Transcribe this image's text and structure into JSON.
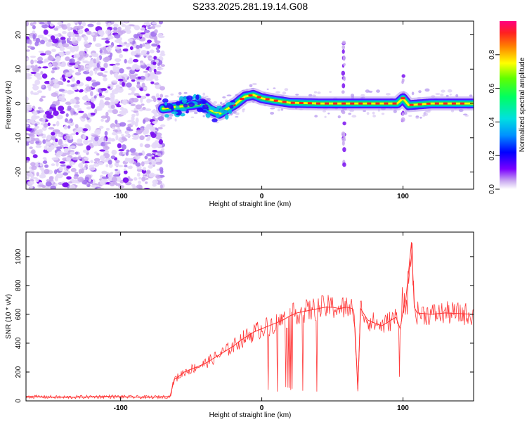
{
  "figure_title": "S233.2025.281.19.14.G08",
  "chart_data": [
    {
      "type": "heatmap",
      "title": "S233.2025.281.19.14.G08",
      "xlabel": "Height of straight line (km)",
      "ylabel": "Frequency (Hz)",
      "xlim": [
        -167,
        150
      ],
      "ylim": [
        -25,
        24
      ],
      "x_ticks": [
        -100,
        0,
        100
      ],
      "y_ticks": [
        20,
        10,
        0,
        -10,
        -20
      ],
      "colorbar": {
        "label": "Normalized spectral amplitude",
        "range": [
          0,
          1
        ],
        "ticks": [
          0.0,
          0.2,
          0.4,
          0.6,
          0.8
        ],
        "colors": [
          "#ffffff",
          "#c8a8f0",
          "#7a00ff",
          "#0000ff",
          "#00c8ff",
          "#00ff80",
          "#40ff00",
          "#ffff00",
          "#ff8000",
          "#ff0040",
          "#ff0080"
        ]
      },
      "noise_region_x": [
        -167,
        -70
      ],
      "dominant_frequency_track": {
        "x": [
          -70,
          -60,
          -50,
          -42,
          -36,
          -30,
          -24,
          -18,
          -12,
          -6,
          0,
          10,
          20,
          40,
          60,
          80,
          96,
          100,
          104,
          120,
          150
        ],
        "y": [
          -1.5,
          -1.0,
          -0.5,
          0.0,
          -2.0,
          -3.0,
          -1.5,
          0.0,
          2.0,
          2.5,
          1.5,
          0.8,
          0.2,
          0.0,
          0.0,
          0.0,
          0.0,
          1.5,
          -0.5,
          0.0,
          0.0
        ]
      },
      "vertical_streaks_x": [
        58,
        100
      ]
    },
    {
      "type": "line",
      "xlabel": "Height of straight line (km)",
      "ylabel": "SNR (10 * v/v)",
      "xlim": [
        -167,
        150
      ],
      "ylim": [
        0,
        1170
      ],
      "x_ticks": [
        -100,
        0,
        100
      ],
      "y_ticks": [
        0,
        200,
        400,
        600,
        800,
        1000
      ],
      "series": [
        {
          "name": "SNR",
          "color": "#ff3030",
          "x": [
            -167,
            -140,
            -110,
            -80,
            -65,
            -62,
            -60,
            -55,
            -50,
            -45,
            -40,
            -35,
            -30,
            -25,
            -20,
            -15,
            -10,
            -5,
            0,
            5,
            10,
            15,
            20,
            25,
            30,
            35,
            40,
            45,
            50,
            55,
            60,
            64,
            66,
            68,
            70,
            75,
            80,
            85,
            90,
            95,
            98,
            100,
            102,
            104,
            106,
            108,
            110,
            120,
            130,
            140,
            150
          ],
          "values": [
            30,
            25,
            30,
            25,
            30,
            150,
            160,
            200,
            220,
            240,
            260,
            290,
            320,
            350,
            380,
            420,
            450,
            480,
            500,
            520,
            540,
            560,
            590,
            610,
            620,
            630,
            640,
            650,
            650,
            640,
            650,
            640,
            500,
            80,
            640,
            560,
            540,
            520,
            550,
            580,
            500,
            620,
            700,
            900,
            1100,
            650,
            610,
            600,
            610,
            605,
            600
          ]
        }
      ]
    }
  ]
}
